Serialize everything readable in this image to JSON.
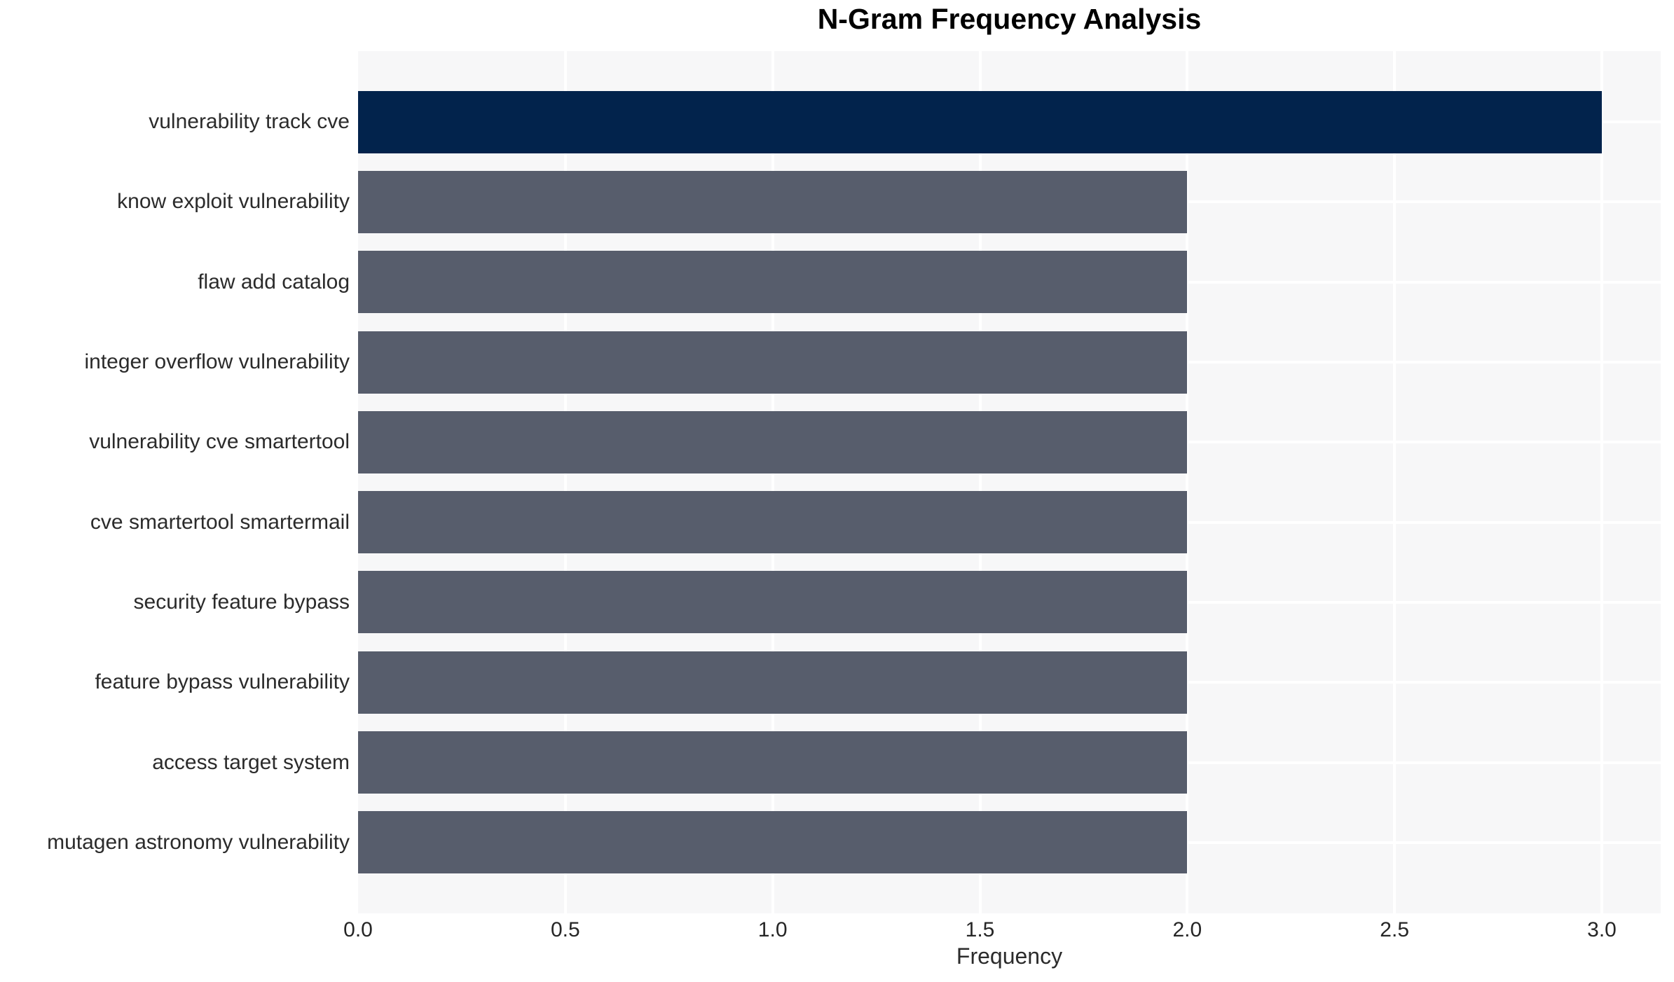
{
  "chart_data": {
    "type": "bar",
    "orientation": "horizontal",
    "title": "N-Gram Frequency Analysis",
    "xlabel": "Frequency",
    "ylabel": "",
    "categories": [
      "vulnerability track cve",
      "know exploit vulnerability",
      "flaw add catalog",
      "integer overflow vulnerability",
      "vulnerability cve smartertool",
      "cve smartertool smartermail",
      "security feature bypass",
      "feature bypass vulnerability",
      "access target system",
      "mutagen astronomy vulnerability"
    ],
    "values": [
      3,
      2,
      2,
      2,
      2,
      2,
      2,
      2,
      2,
      2
    ],
    "bar_colors": [
      "#02234c",
      "#575d6c",
      "#575d6c",
      "#575d6c",
      "#575d6c",
      "#575d6c",
      "#575d6c",
      "#575d6c",
      "#575d6c",
      "#575d6c"
    ],
    "x_ticks": [
      "0.0",
      "0.5",
      "1.0",
      "1.5",
      "2.0",
      "2.5",
      "3.0"
    ],
    "x_tick_values": [
      0,
      0.5,
      1,
      1.5,
      2,
      2.5,
      3
    ],
    "xlim": [
      0,
      3.14
    ],
    "grid": true,
    "legend": "none",
    "colors": {
      "highlight_bar": "#02234c",
      "default_bar": "#575d6c",
      "plot_background": "#f7f7f8",
      "gridline": "#ffffff",
      "title_text": "#000000",
      "axis_text": "#2b2b2b"
    }
  }
}
